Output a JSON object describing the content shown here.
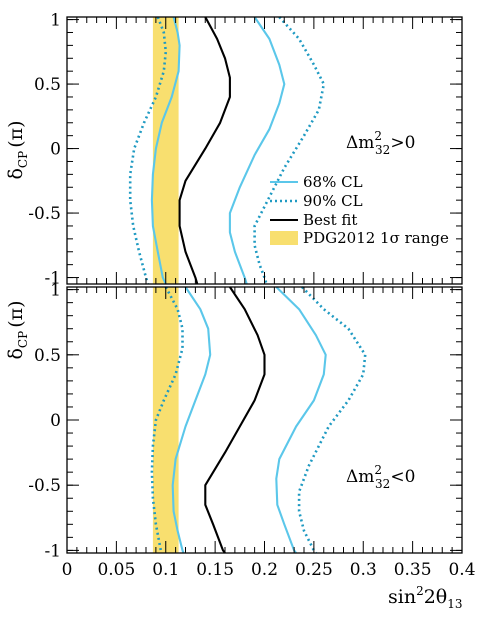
{
  "chart_data": [
    {
      "type": "line",
      "panel": "top",
      "ylabel": "δ",
      "ylabel_sub": "CP",
      "ylabel_unit": "(π)",
      "xlabel": "",
      "xlim": [
        0,
        0.4
      ],
      "ylim": [
        -1.05,
        1.02
      ],
      "yticks": [
        -1,
        -0.5,
        0,
        0.5,
        1
      ],
      "ytick_labels": [
        "-1",
        "-0.5",
        "0",
        "0.5",
        "1"
      ],
      "grid": false,
      "band": {
        "name": "PDG2012 1σ range",
        "x_min": 0.087,
        "x_max": 0.113,
        "color": "#f8df6f"
      },
      "annotation": {
        "base": "Δm",
        "sup": "2",
        "sub": "32",
        "rel": ">0"
      },
      "legend": {
        "placement": "right",
        "entries": [
          {
            "label": "68% CL",
            "style": "solid",
            "color": "#5bc7ea"
          },
          {
            "label": "90% CL",
            "style": "dotted",
            "color": "#1f9ac2"
          },
          {
            "label": "Best fit",
            "style": "solid",
            "color": "#000000"
          },
          {
            "label": "PDG2012 1σ range",
            "style": "band",
            "color": "#f8df6f"
          }
        ]
      },
      "series": [
        {
          "name": "90% CL",
          "style": "dotted",
          "color": "#1f9ac2",
          "points": [
            [
              0.092,
              1.02
            ],
            [
              0.098,
              0.9
            ],
            [
              0.1,
              0.75
            ],
            [
              0.098,
              0.6
            ],
            [
              0.09,
              0.4
            ],
            [
              0.078,
              0.2
            ],
            [
              0.068,
              0
            ],
            [
              0.064,
              -0.2
            ],
            [
              0.064,
              -0.4
            ],
            [
              0.067,
              -0.6
            ],
            [
              0.073,
              -0.8
            ],
            [
              0.08,
              -1.0
            ],
            [
              0.082,
              -1.05
            ]
          ]
        },
        {
          "name": "68% CL",
          "style": "solid",
          "color": "#5bc7ea",
          "points": [
            [
              0.108,
              1.02
            ],
            [
              0.112,
              0.9
            ],
            [
              0.114,
              0.8
            ],
            [
              0.113,
              0.6
            ],
            [
              0.106,
              0.4
            ],
            [
              0.096,
              0.2
            ],
            [
              0.09,
              0
            ],
            [
              0.087,
              -0.2
            ],
            [
              0.086,
              -0.4
            ],
            [
              0.087,
              -0.6
            ],
            [
              0.092,
              -0.8
            ],
            [
              0.097,
              -1.0
            ],
            [
              0.1,
              -1.05
            ]
          ]
        },
        {
          "name": "Best fit",
          "style": "solid",
          "color": "#000000",
          "points": [
            [
              0.14,
              1.02
            ],
            [
              0.152,
              0.85
            ],
            [
              0.16,
              0.7
            ],
            [
              0.165,
              0.55
            ],
            [
              0.165,
              0.4
            ],
            [
              0.155,
              0.2
            ],
            [
              0.14,
              0
            ],
            [
              0.12,
              -0.25
            ],
            [
              0.114,
              -0.4
            ],
            [
              0.114,
              -0.6
            ],
            [
              0.12,
              -0.8
            ],
            [
              0.13,
              -1.0
            ],
            [
              0.132,
              -1.05
            ]
          ]
        },
        {
          "name": "68% CL",
          "style": "solid",
          "color": "#5bc7ea",
          "points": [
            [
              0.19,
              1.02
            ],
            [
              0.205,
              0.85
            ],
            [
              0.215,
              0.65
            ],
            [
              0.22,
              0.5
            ],
            [
              0.215,
              0.35
            ],
            [
              0.205,
              0.15
            ],
            [
              0.19,
              -0.05
            ],
            [
              0.175,
              -0.3
            ],
            [
              0.165,
              -0.5
            ],
            [
              0.165,
              -0.65
            ],
            [
              0.17,
              -0.8
            ],
            [
              0.18,
              -1.0
            ],
            [
              0.182,
              -1.05
            ]
          ]
        },
        {
          "name": "90% CL",
          "style": "dotted",
          "color": "#1f9ac2",
          "points": [
            [
              0.215,
              1.02
            ],
            [
              0.235,
              0.85
            ],
            [
              0.25,
              0.65
            ],
            [
              0.26,
              0.5
            ],
            [
              0.255,
              0.3
            ],
            [
              0.24,
              0.1
            ],
            [
              0.22,
              -0.15
            ],
            [
              0.2,
              -0.45
            ],
            [
              0.19,
              -0.6
            ],
            [
              0.19,
              -0.75
            ],
            [
              0.195,
              -0.9
            ],
            [
              0.2,
              -1.0
            ],
            [
              0.202,
              -1.05
            ]
          ]
        }
      ]
    },
    {
      "type": "line",
      "panel": "bottom",
      "ylabel": "δ",
      "ylabel_sub": "CP",
      "ylabel_unit": "(π)",
      "xlabel": "sin",
      "xlabel_sup": "2",
      "xlabel_mid": "2θ",
      "xlabel_sub": "13",
      "xlim": [
        0,
        0.4
      ],
      "ylim": [
        -1.02,
        1.02
      ],
      "xticks": [
        0,
        0.05,
        0.1,
        0.15,
        0.2,
        0.25,
        0.3,
        0.35,
        0.4
      ],
      "xtick_labels": [
        "0",
        "0.05",
        "0.1",
        "0.15",
        "0.2",
        "0.25",
        "0.3",
        "0.35",
        "0.4"
      ],
      "yticks": [
        -1,
        -0.5,
        0,
        0.5,
        1
      ],
      "ytick_labels": [
        "-1",
        "-0.5",
        "0",
        "0.5",
        "1"
      ],
      "grid": false,
      "band": {
        "name": "PDG2012 1σ range",
        "x_min": 0.087,
        "x_max": 0.113,
        "color": "#f8df6f"
      },
      "annotation": {
        "base": "Δm",
        "sup": "2",
        "sub": "32",
        "rel": "<0"
      },
      "series": [
        {
          "name": "90% CL",
          "style": "dotted",
          "color": "#1f9ac2",
          "points": [
            [
              0.1,
              1.02
            ],
            [
              0.112,
              0.85
            ],
            [
              0.117,
              0.7
            ],
            [
              0.117,
              0.55
            ],
            [
              0.11,
              0.35
            ],
            [
              0.098,
              0.15
            ],
            [
              0.09,
              0
            ],
            [
              0.087,
              -0.2
            ],
            [
              0.086,
              -0.4
            ],
            [
              0.087,
              -0.6
            ],
            [
              0.09,
              -0.8
            ],
            [
              0.095,
              -1.0
            ],
            [
              0.096,
              -1.02
            ]
          ]
        },
        {
          "name": "68% CL",
          "style": "solid",
          "color": "#5bc7ea",
          "points": [
            [
              0.12,
              1.02
            ],
            [
              0.135,
              0.85
            ],
            [
              0.143,
              0.7
            ],
            [
              0.145,
              0.5
            ],
            [
              0.14,
              0.35
            ],
            [
              0.13,
              0.15
            ],
            [
              0.12,
              -0.05
            ],
            [
              0.11,
              -0.3
            ],
            [
              0.107,
              -0.5
            ],
            [
              0.108,
              -0.7
            ],
            [
              0.112,
              -0.85
            ],
            [
              0.117,
              -1.0
            ],
            [
              0.118,
              -1.02
            ]
          ]
        },
        {
          "name": "Best fit",
          "style": "solid",
          "color": "#000000",
          "points": [
            [
              0.165,
              1.02
            ],
            [
              0.18,
              0.85
            ],
            [
              0.193,
              0.65
            ],
            [
              0.2,
              0.5
            ],
            [
              0.2,
              0.35
            ],
            [
              0.19,
              0.15
            ],
            [
              0.175,
              -0.05
            ],
            [
              0.16,
              -0.25
            ],
            [
              0.14,
              -0.5
            ],
            [
              0.14,
              -0.65
            ],
            [
              0.148,
              -0.8
            ],
            [
              0.158,
              -1.0
            ],
            [
              0.16,
              -1.02
            ]
          ]
        },
        {
          "name": "68% CL",
          "style": "solid",
          "color": "#5bc7ea",
          "points": [
            [
              0.212,
              1.02
            ],
            [
              0.235,
              0.85
            ],
            [
              0.252,
              0.65
            ],
            [
              0.262,
              0.5
            ],
            [
              0.26,
              0.35
            ],
            [
              0.25,
              0.15
            ],
            [
              0.232,
              -0.05
            ],
            [
              0.215,
              -0.3
            ],
            [
              0.212,
              -0.45
            ],
            [
              0.213,
              -0.65
            ],
            [
              0.22,
              -0.8
            ],
            [
              0.23,
              -1.0
            ],
            [
              0.232,
              -1.02
            ]
          ]
        },
        {
          "name": "90% CL",
          "style": "dotted",
          "color": "#1f9ac2",
          "points": [
            [
              0.238,
              1.02
            ],
            [
              0.26,
              0.85
            ],
            [
              0.285,
              0.7
            ],
            [
              0.302,
              0.5
            ],
            [
              0.3,
              0.35
            ],
            [
              0.285,
              0.15
            ],
            [
              0.265,
              -0.05
            ],
            [
              0.245,
              -0.35
            ],
            [
              0.235,
              -0.55
            ],
            [
              0.235,
              -0.7
            ],
            [
              0.24,
              -0.85
            ],
            [
              0.25,
              -1.0
            ],
            [
              0.252,
              -1.02
            ]
          ]
        }
      ]
    }
  ]
}
